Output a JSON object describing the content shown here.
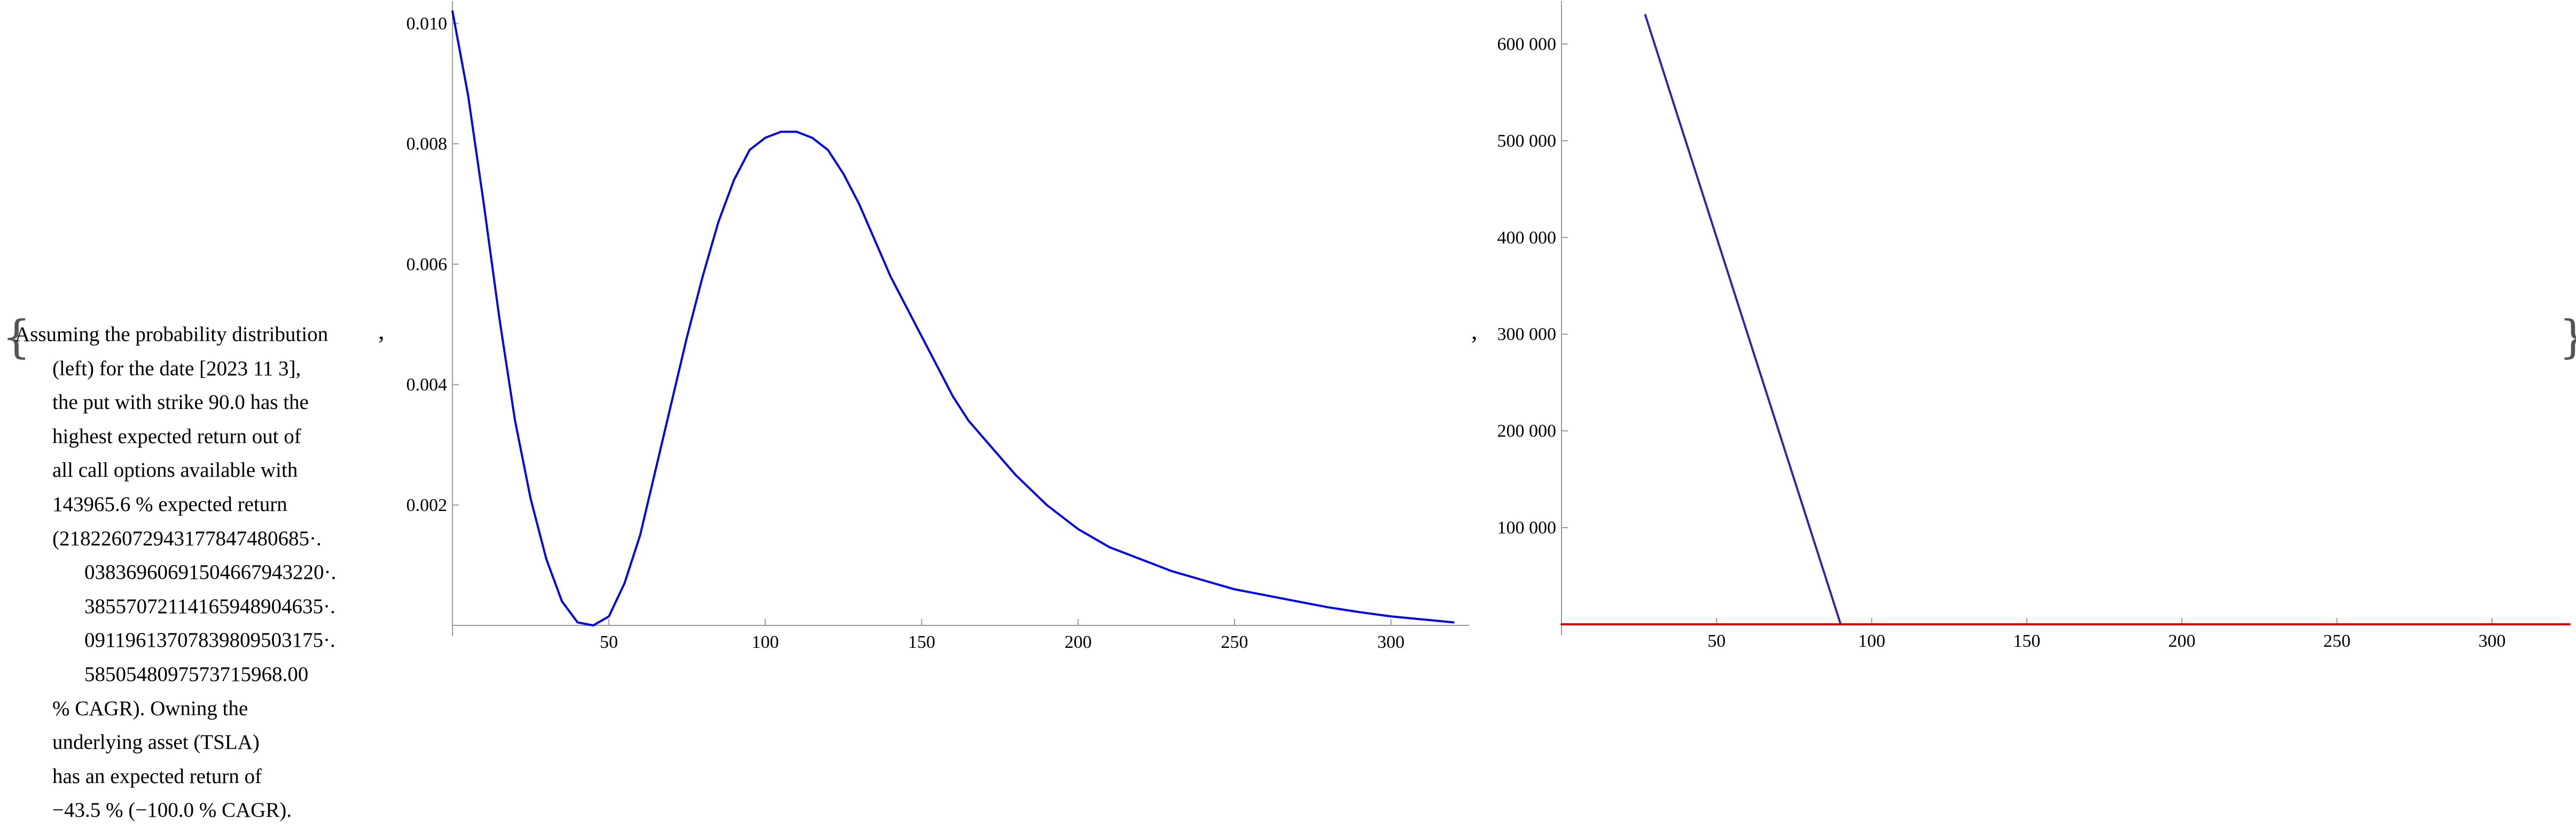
{
  "output": {
    "open_brace": "{",
    "close_brace": "}",
    "separator": ",",
    "description_lines": [
      "Assuming the probability distribution",
      "(left) for the date [2023 11 3],",
      "the put with strike 90.0 has the",
      "highest expected return out of",
      "all call options available with",
      "143965.6 % expected return",
      "(218226072943177847480685·.",
      "03836960691504667943220·.",
      "38557072114165948904635·.",
      "09119613707839809503175·.",
      "5850548097573715968.00",
      "% CAGR). Owning the",
      "underlying asset (TSLA)",
      "has an expected return of",
      "−43.5 % (−100.0 % CAGR)."
    ]
  },
  "chart_data": [
    {
      "type": "line",
      "title": "",
      "xlabel": "",
      "ylabel": "",
      "xlim": [
        0,
        325
      ],
      "ylim": [
        0,
        0.0103
      ],
      "x_ticks": [
        50,
        100,
        150,
        200,
        250,
        300
      ],
      "x_tick_labels": [
        "50",
        "100",
        "150",
        "200",
        "250",
        "300"
      ],
      "y_ticks": [
        0.002,
        0.004,
        0.006,
        0.008,
        0.01
      ],
      "y_tick_labels": [
        "0.002",
        "0.004",
        "0.006",
        "0.008",
        "0.010"
      ],
      "grid": false,
      "series": [
        {
          "color": "#0000ee",
          "x": [
            0,
            5,
            10,
            15,
            20,
            25,
            30,
            35,
            40,
            45,
            50,
            55,
            60,
            65,
            70,
            75,
            80,
            85,
            90,
            95,
            100,
            105,
            110,
            115,
            120,
            125,
            130,
            135,
            140,
            145,
            150,
            155,
            160,
            165,
            170,
            180,
            190,
            200,
            210,
            220,
            230,
            240,
            250,
            260,
            270,
            280,
            290,
            300,
            310,
            320
          ],
          "y": [
            0.0102,
            0.0088,
            0.007,
            0.0051,
            0.0034,
            0.0021,
            0.0011,
            0.0004,
            5e-05,
            0.0,
            0.00015,
            0.0007,
            0.0015,
            0.0026,
            0.0037,
            0.0048,
            0.0058,
            0.0067,
            0.0074,
            0.0079,
            0.0081,
            0.0082,
            0.0082,
            0.0081,
            0.0079,
            0.0075,
            0.007,
            0.0064,
            0.0058,
            0.0053,
            0.0048,
            0.0043,
            0.0038,
            0.0034,
            0.0031,
            0.0025,
            0.002,
            0.0016,
            0.0013,
            0.0011,
            0.0009,
            0.00075,
            0.0006,
            0.0005,
            0.0004,
            0.0003,
            0.00022,
            0.00015,
            0.0001,
            5e-05
          ]
        }
      ]
    },
    {
      "type": "line",
      "title": "",
      "xlabel": "",
      "ylabel": "",
      "xlim": [
        0,
        325
      ],
      "ylim": [
        0,
        640000
      ],
      "x_ticks": [
        50,
        100,
        150,
        200,
        250,
        300
      ],
      "x_tick_labels": [
        "50",
        "100",
        "150",
        "200",
        "250",
        "300"
      ],
      "y_ticks": [
        100000,
        200000,
        300000,
        400000,
        500000,
        600000
      ],
      "y_tick_labels": [
        "100 000",
        "200 000",
        "300 000",
        "400 000",
        "500 000",
        "600 000"
      ],
      "grid": false,
      "series": [
        {
          "color": "#2a2aa8",
          "x": [
            27,
            90
          ],
          "y": [
            630000,
            0
          ]
        },
        {
          "color": "#cc0000",
          "x": [
            0,
            325
          ],
          "y": [
            0,
            0
          ]
        }
      ]
    }
  ]
}
